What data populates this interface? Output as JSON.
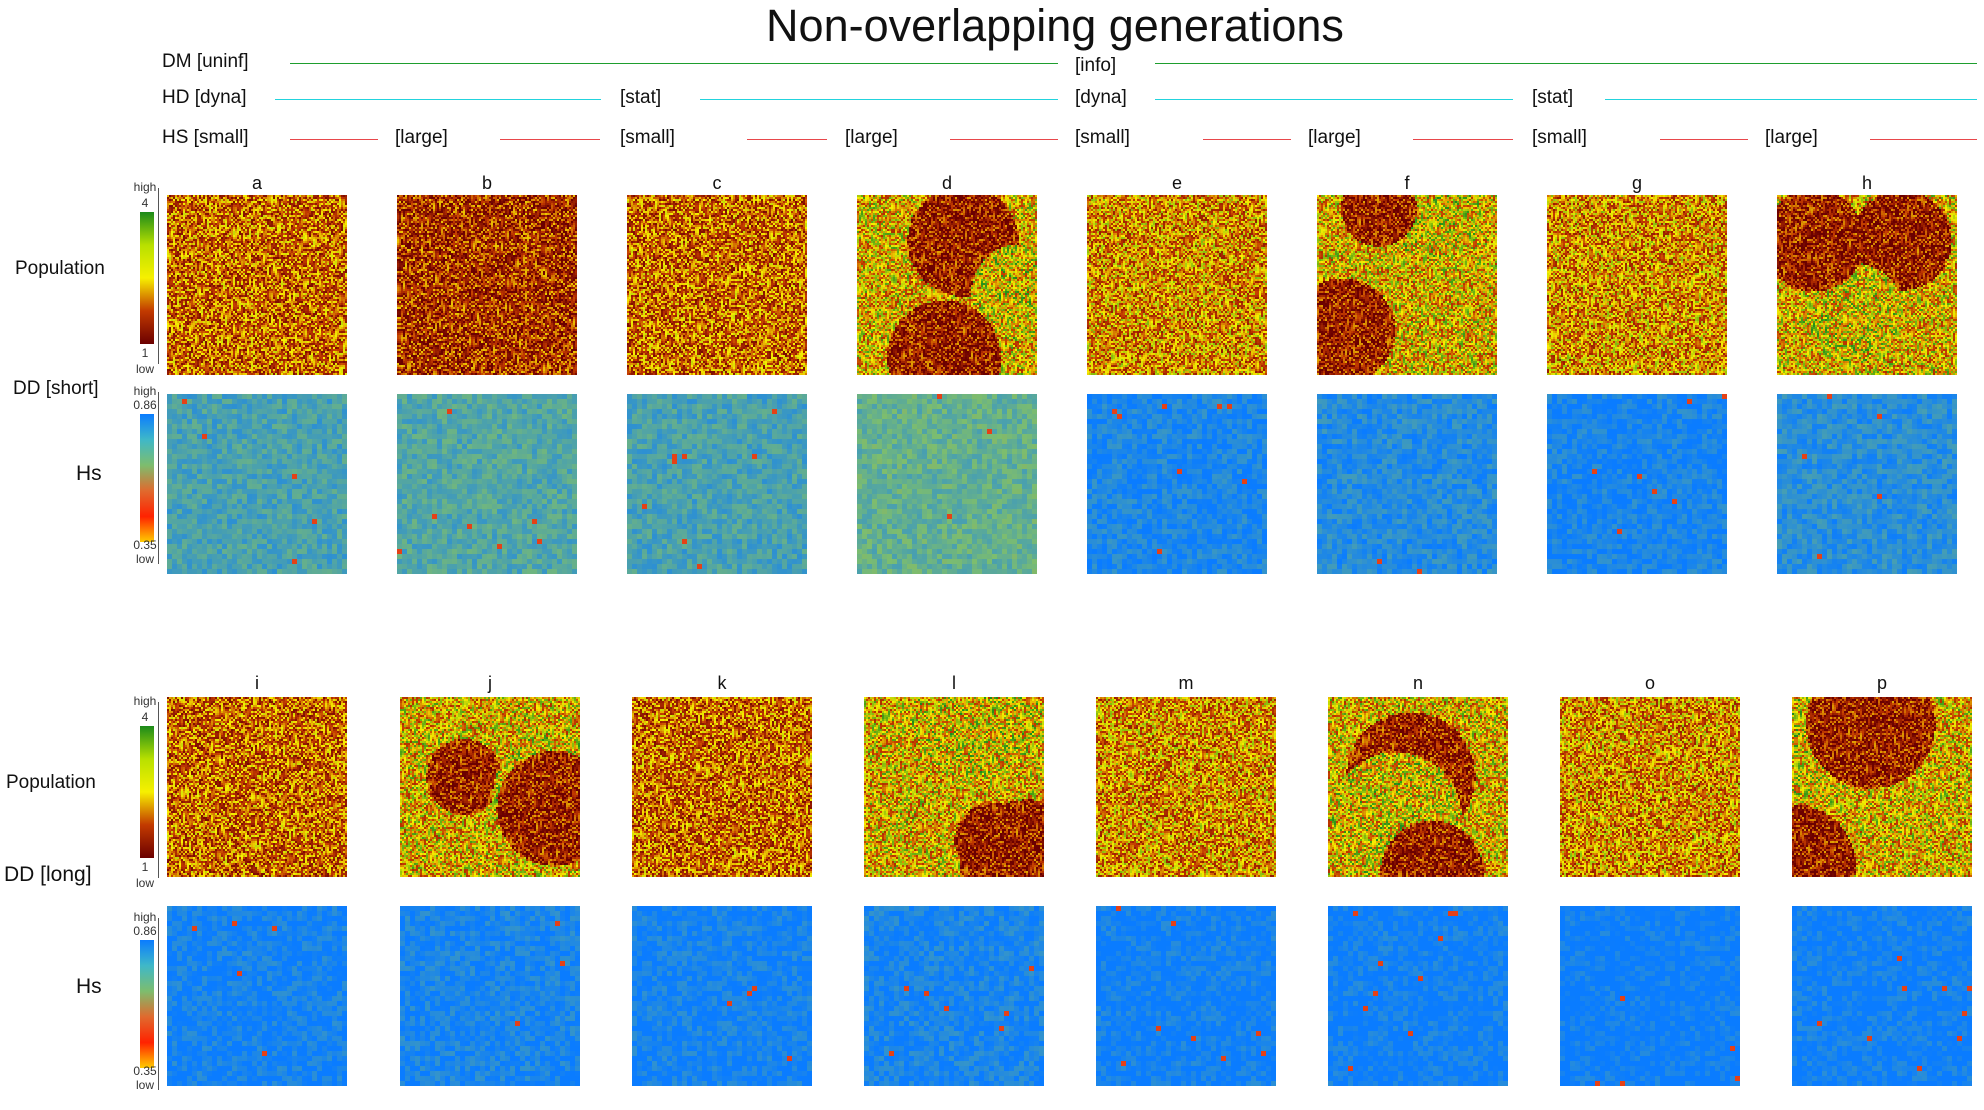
{
  "title": "Non-overlapping generations",
  "header": {
    "dm": {
      "label": "DM [uninf]",
      "mid": "[info]",
      "color": "#1e9e2e"
    },
    "hd": {
      "label": "HD [dyna]",
      "ticks": [
        "[stat]",
        "[dyna]",
        "[stat]"
      ],
      "color": "#22d3dd"
    },
    "hs": {
      "label": "HS [small]",
      "ticks": [
        "[large]",
        "[small]",
        "[large]",
        "[small]",
        "[large]",
        "[small]",
        "[large]"
      ],
      "color": "#e8474b"
    }
  },
  "rows": {
    "pop_label": "Population",
    "dd_short": "DD [short]",
    "dd_long": "DD [long]",
    "hs_label": "Hs"
  },
  "colorbars": {
    "population": {
      "high": "high",
      "max": "4",
      "min": "1",
      "low": "low"
    },
    "hs": {
      "high": "high",
      "max": "0.86",
      "min": "0.35",
      "low": "low"
    }
  },
  "chart_data": {
    "type": "heatmap",
    "panels_top": [
      "a",
      "b",
      "c",
      "d",
      "e",
      "f",
      "g",
      "h"
    ],
    "panels_bottom": [
      "i",
      "j",
      "k",
      "l",
      "m",
      "n",
      "o",
      "p"
    ],
    "population_scale": [
      1,
      4
    ],
    "hs_scale": [
      0.35,
      0.86
    ],
    "population_colormap": [
      "#6b0000",
      "#c23a00",
      "#f7f000",
      "#1b8a1b"
    ],
    "hs_colormap": [
      "#ff2200",
      "#7dbd6e",
      "#0a7cff"
    ],
    "population_pattern": {
      "a": "uniform",
      "b": "dark",
      "c": "uniform",
      "d": "patches",
      "e": "uniform-light",
      "f": "patches",
      "g": "uniform-light",
      "h": "patches",
      "i": "uniform",
      "j": "patches",
      "k": "uniform",
      "l": "patches",
      "m": "uniform-light",
      "n": "patches",
      "o": "uniform-light",
      "p": "patches"
    },
    "hs_level": {
      "a": 0.72,
      "b": 0.7,
      "c": 0.72,
      "d": 0.66,
      "e": 0.82,
      "f": 0.8,
      "g": 0.83,
      "h": 0.79,
      "i": 0.84,
      "j": 0.83,
      "k": 0.84,
      "l": 0.83,
      "m": 0.85,
      "n": 0.85,
      "o": 0.86,
      "p": 0.85
    }
  }
}
